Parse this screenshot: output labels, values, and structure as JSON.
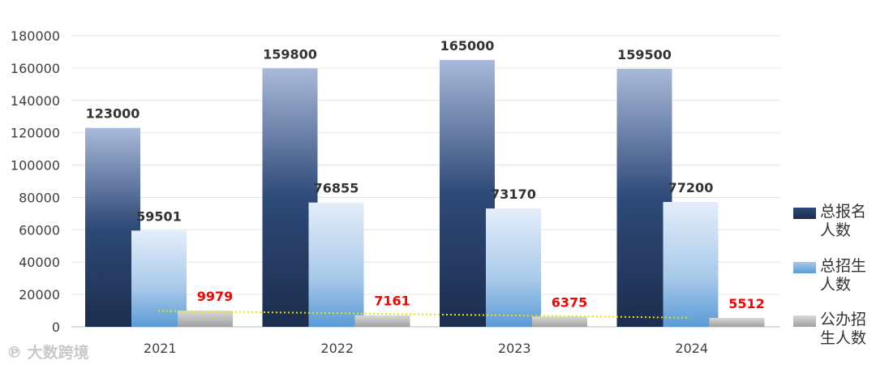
{
  "chart_data": {
    "type": "bar",
    "categories": [
      "2021",
      "2022",
      "2023",
      "2024"
    ],
    "series": [
      {
        "name": "总报名人数",
        "values": [
          123000,
          159800,
          165000,
          159500
        ],
        "color": "#1f3559",
        "label_color": "#333333"
      },
      {
        "name": "总招生人数",
        "values": [
          59501,
          76855,
          73170,
          77200
        ],
        "color": "#5b9bd5",
        "label_color": "#333333"
      },
      {
        "name": "公办招生人数",
        "values": [
          9979,
          7161,
          6375,
          5512
        ],
        "color": "#a6a6a6",
        "label_color": "#ff0000"
      }
    ],
    "trendline": {
      "series": "公办招生人数",
      "type": "linear",
      "color": "#e6e600",
      "style": "dotted"
    },
    "ylim": [
      0,
      180000
    ],
    "yticks": [
      0,
      20000,
      40000,
      60000,
      80000,
      100000,
      120000,
      140000,
      160000,
      180000
    ],
    "grid": true,
    "legend_position": "right"
  },
  "watermark": "大数跨境"
}
